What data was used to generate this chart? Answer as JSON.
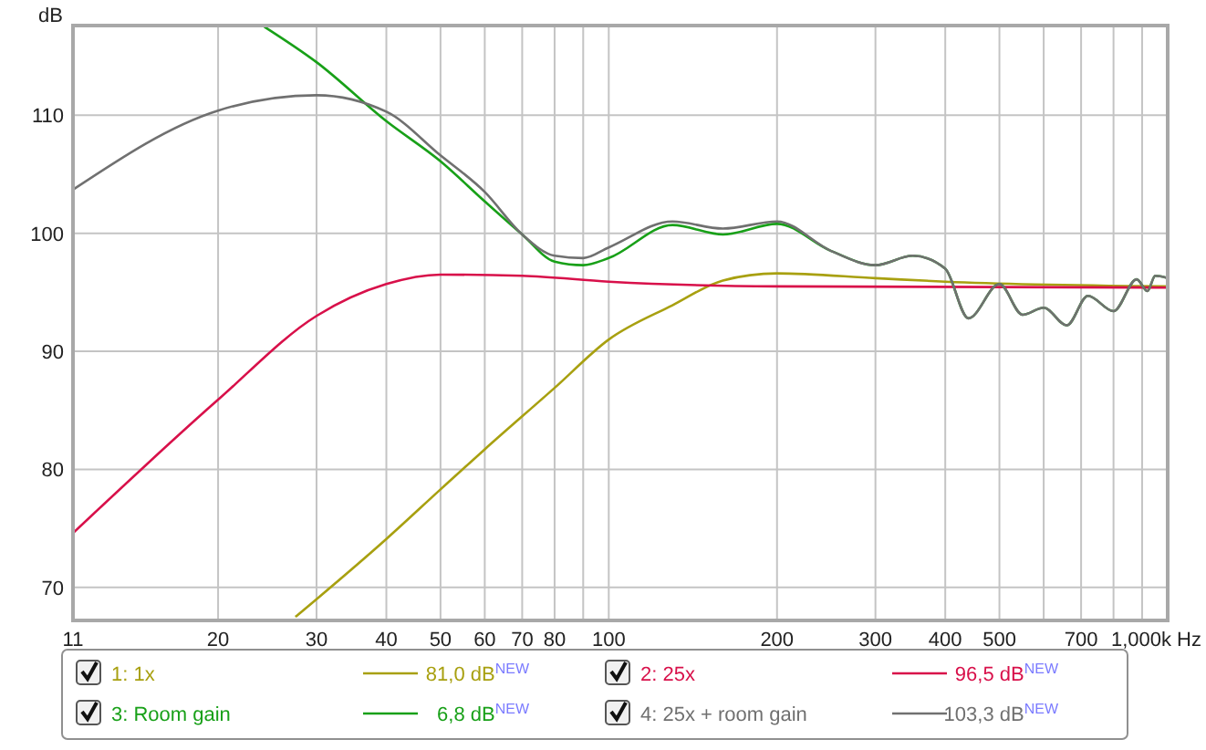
{
  "chart_data": {
    "type": "line",
    "xlabel": "Hz",
    "ylabel": "dB",
    "log": "x",
    "grid": true,
    "legend": "bottom",
    "line_style": "solid",
    "marker": "none",
    "xlim": [
      11,
      1000
    ],
    "ylim": [
      67.2,
      117.6
    ],
    "xticks": [
      11,
      20,
      30,
      40,
      50,
      60,
      70,
      80,
      {
        "value": 90,
        "label": null
      },
      100,
      200,
      300,
      400,
      500,
      {
        "value": 600,
        "label": null
      },
      700,
      {
        "value": 800,
        "label": null
      },
      {
        "value": 900,
        "label": null
      },
      {
        "value": 1000,
        "label": "1,000k"
      }
    ],
    "yticks": [
      70,
      80,
      90,
      100,
      110
    ],
    "series": [
      {
        "name": "1: 1x",
        "color": "#a8a010",
        "x": [
          27.5,
          30,
          40,
          50,
          60,
          80,
          100,
          130,
          160,
          200,
          300,
          400,
          1000
        ],
        "values": [
          67.5,
          69.0,
          74.1,
          78.3,
          81.7,
          86.9,
          91.0,
          93.9,
          96.0,
          96.6,
          96.2,
          95.9,
          95.5
        ]
      },
      {
        "name": "2: 25x",
        "color": "#d8104a",
        "x": [
          11,
          20,
          30,
          40,
          50,
          70,
          100,
          200,
          1000
        ],
        "values": [
          74.6,
          85.9,
          93.0,
          95.7,
          96.5,
          96.4,
          95.9,
          95.5,
          95.4
        ]
      },
      {
        "name": "3: Room gain",
        "color": "#18a018",
        "x": [
          24.2,
          30,
          40,
          50,
          60,
          70,
          80,
          90,
          100,
          130,
          160,
          200,
          250,
          300,
          350,
          400,
          440,
          500,
          550,
          600,
          660,
          720,
          800,
          880,
          920,
          950,
          1000
        ],
        "values": [
          117.5,
          114.5,
          109.5,
          106.1,
          102.7,
          99.9,
          97.6,
          97.3,
          97.9,
          100.7,
          99.9,
          100.8,
          98.5,
          97.3,
          98.1,
          97.0,
          92.8,
          95.7,
          93.1,
          93.7,
          92.2,
          94.7,
          93.4,
          96.1,
          95.1,
          96.4,
          96.2
        ]
      },
      {
        "name": "4: 25x + room gain",
        "color": "#707070",
        "x": [
          11,
          20,
          30,
          40,
          50,
          60,
          70,
          80,
          90,
          100,
          130,
          160,
          200,
          250,
          300,
          350,
          400,
          440,
          500,
          550,
          600,
          660,
          720,
          800,
          880,
          920,
          950,
          1000
        ],
        "values": [
          103.7,
          110.4,
          111.7,
          110.3,
          106.6,
          103.5,
          99.9,
          98.1,
          97.9,
          98.8,
          101.0,
          100.4,
          101.0,
          98.5,
          97.3,
          98.1,
          97.0,
          92.8,
          95.7,
          93.1,
          93.7,
          92.2,
          94.7,
          93.4,
          96.1,
          95.1,
          96.4,
          96.2
        ]
      }
    ],
    "annotations": [
      "81,0 dB$^{NEW}$",
      "96,5 dB$^{NEW}$",
      "6,8 dB$^{NEW}$",
      "103,3 dB$^{NEW}$"
    ]
  }
}
